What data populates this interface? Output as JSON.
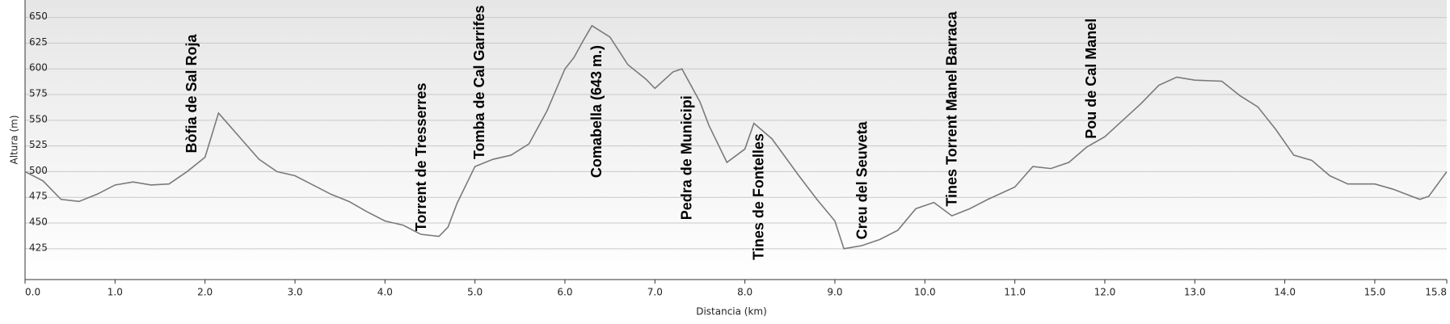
{
  "chart_data": {
    "type": "line",
    "xlabel": "Distancia    (km)",
    "ylabel": "Altura (m)",
    "x": [
      0,
      0.2,
      0.4,
      0.6,
      0.8,
      1.0,
      1.2,
      1.4,
      1.6,
      1.8,
      2.0,
      2.15,
      2.2,
      2.4,
      2.6,
      2.8,
      3.0,
      3.2,
      3.4,
      3.6,
      3.8,
      4.0,
      4.2,
      4.4,
      4.6,
      4.7,
      4.8,
      5.0,
      5.2,
      5.4,
      5.6,
      5.8,
      6.0,
      6.1,
      6.2,
      6.3,
      6.5,
      6.7,
      6.9,
      7.0,
      7.2,
      7.3,
      7.5,
      7.6,
      7.8,
      8.0,
      8.1,
      8.3,
      8.6,
      8.8,
      9.0,
      9.1,
      9.3,
      9.5,
      9.7,
      9.9,
      10.1,
      10.3,
      10.5,
      10.7,
      11.0,
      11.2,
      11.4,
      11.6,
      11.8,
      12.0,
      12.2,
      12.4,
      12.6,
      12.8,
      13.0,
      13.3,
      13.5,
      13.7,
      13.9,
      14.1,
      14.3,
      14.5,
      14.7,
      15.0,
      15.2,
      15.5,
      15.6,
      15.8
    ],
    "series": [
      {
        "color": "#7a7a7a",
        "values": [
          500,
          491,
          473,
          471,
          478,
          487,
          490,
          487,
          488,
          500,
          514,
          557,
          552,
          532,
          512,
          500,
          496,
          487,
          478,
          471,
          461,
          452,
          448,
          439,
          437,
          446,
          469,
          505,
          512,
          516,
          527,
          559,
          600,
          611,
          627,
          642,
          631,
          604,
          590,
          581,
          597,
          600,
          568,
          545,
          509,
          522,
          547,
          532,
          496,
          473,
          452,
          425,
          428,
          434,
          443,
          464,
          470,
          457,
          464,
          473,
          485,
          505,
          503,
          509,
          524,
          534,
          550,
          566,
          584,
          592,
          589,
          588,
          574,
          563,
          541,
          516,
          511,
          496,
          488,
          488,
          483,
          473,
          476,
          500
        ]
      }
    ],
    "annotations": [
      {
        "text": "Bòfia de Sal Roja",
        "x": 1.85,
        "y": 518
      },
      {
        "text": "Torrent de Tresserres",
        "x": 4.4,
        "y": 442
      },
      {
        "text": "Tomba de Cal Garrifes",
        "x": 5.05,
        "y": 512
      },
      {
        "text": "Comabella (643 m.)",
        "x": 6.35,
        "y": 494
      },
      {
        "text": "Pedra de Municipi",
        "x": 7.35,
        "y": 453
      },
      {
        "text": "Tines de Fontelles",
        "x": 8.15,
        "y": 414
      },
      {
        "text": "Creu del Seuveta",
        "x": 9.3,
        "y": 434
      },
      {
        "text": "Tines Torrent Manel Barraca",
        "x": 10.3,
        "y": 466
      },
      {
        "text": "Pou de Cal Manel",
        "x": 11.85,
        "y": 532
      }
    ],
    "xlim": [
      0,
      15.8
    ],
    "ylim": [
      395,
      667
    ],
    "xticks": [
      {
        "value": 0,
        "label": "0.0"
      },
      {
        "value": 1,
        "label": "1.0"
      },
      {
        "value": 2,
        "label": "2.0"
      },
      {
        "value": 3,
        "label": "3.0"
      },
      {
        "value": 4,
        "label": "4.0"
      },
      {
        "value": 5,
        "label": "5.0"
      },
      {
        "value": 6,
        "label": "6.0"
      },
      {
        "value": 7,
        "label": "7.0"
      },
      {
        "value": 8,
        "label": "8.0"
      },
      {
        "value": 9,
        "label": "9.0"
      },
      {
        "value": 10,
        "label": "10.0"
      },
      {
        "value": 11,
        "label": "11.0"
      },
      {
        "value": 12,
        "label": "12.0"
      },
      {
        "value": 13,
        "label": "13.0"
      },
      {
        "value": 14,
        "label": "14.0"
      },
      {
        "value": 15,
        "label": "15.0"
      },
      15.8
    ],
    "yticks": [
      425,
      450,
      475,
      500,
      525,
      550,
      575,
      600,
      625,
      650
    ],
    "grid": true
  }
}
